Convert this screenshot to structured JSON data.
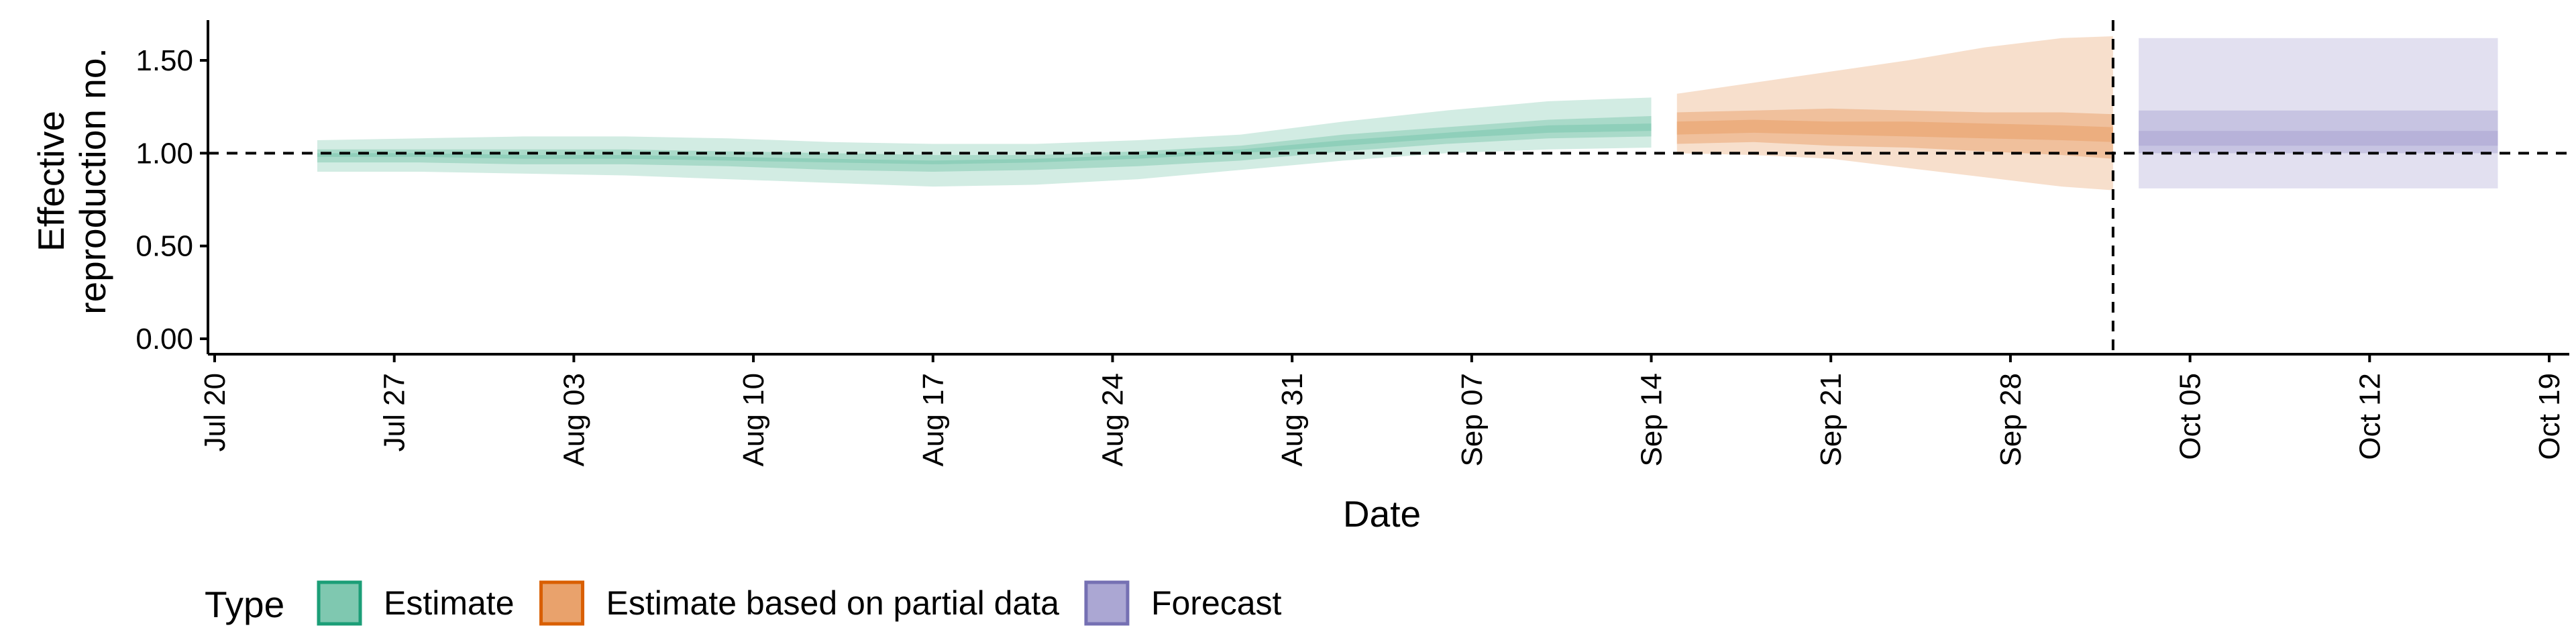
{
  "chart_data": {
    "type": "area",
    "xlabel": "Date",
    "ylabel": [
      "Effective",
      "reproduction no."
    ],
    "ylim": [
      0,
      1.7
    ],
    "y_ticks": [
      "0.00",
      "0.50",
      "1.00",
      "1.50"
    ],
    "y_tick_values": [
      0,
      0.5,
      1.0,
      1.5
    ],
    "x_domain": [
      "2020-07-20",
      "2020-10-20"
    ],
    "x_ticks": [
      {
        "date": "2020-07-20",
        "label": "Jul 20"
      },
      {
        "date": "2020-07-27",
        "label": "Jul 27"
      },
      {
        "date": "2020-08-03",
        "label": "Aug 03"
      },
      {
        "date": "2020-08-10",
        "label": "Aug 10"
      },
      {
        "date": "2020-08-17",
        "label": "Aug 17"
      },
      {
        "date": "2020-08-24",
        "label": "Aug 24"
      },
      {
        "date": "2020-08-31",
        "label": "Aug 31"
      },
      {
        "date": "2020-09-07",
        "label": "Sep 07"
      },
      {
        "date": "2020-09-14",
        "label": "Sep 14"
      },
      {
        "date": "2020-09-21",
        "label": "Sep 21"
      },
      {
        "date": "2020-09-28",
        "label": "Sep 28"
      },
      {
        "date": "2020-10-05",
        "label": "Oct 05"
      },
      {
        "date": "2020-10-12",
        "label": "Oct 12"
      },
      {
        "date": "2020-10-19",
        "label": "Oct 19"
      }
    ],
    "reference_hline": 1.0,
    "reference_vline": "2020-10-02",
    "grid": false,
    "legend": {
      "title": "Type",
      "position": "bottom-left"
    },
    "series": [
      {
        "name": "Estimate",
        "color": "#1B9E77",
        "fill": "#7FC8B0",
        "dates": [
          "2020-07-24",
          "2020-07-28",
          "2020-08-01",
          "2020-08-05",
          "2020-08-09",
          "2020-08-13",
          "2020-08-17",
          "2020-08-21",
          "2020-08-25",
          "2020-08-29",
          "2020-09-02",
          "2020-09-06",
          "2020-09-10",
          "2020-09-14"
        ],
        "lower90": [
          0.9,
          0.9,
          0.89,
          0.88,
          0.86,
          0.84,
          0.82,
          0.83,
          0.86,
          0.91,
          0.96,
          1.0,
          1.02,
          1.03
        ],
        "upper90": [
          1.07,
          1.08,
          1.09,
          1.09,
          1.08,
          1.06,
          1.05,
          1.05,
          1.07,
          1.1,
          1.17,
          1.23,
          1.28,
          1.3
        ],
        "lower50": [
          0.95,
          0.95,
          0.94,
          0.94,
          0.93,
          0.91,
          0.9,
          0.91,
          0.93,
          0.96,
          1.01,
          1.05,
          1.08,
          1.09
        ],
        "upper50": [
          1.02,
          1.02,
          1.02,
          1.02,
          1.01,
          1.0,
          0.99,
          0.99,
          1.01,
          1.04,
          1.1,
          1.14,
          1.18,
          1.2
        ],
        "lower20": [
          0.98,
          0.98,
          0.97,
          0.97,
          0.96,
          0.95,
          0.94,
          0.95,
          0.97,
          1.0,
          1.04,
          1.08,
          1.11,
          1.12
        ],
        "upper20": [
          1.0,
          1.0,
          0.99,
          0.99,
          0.98,
          0.97,
          0.96,
          0.97,
          0.99,
          1.02,
          1.07,
          1.11,
          1.15,
          1.16
        ]
      },
      {
        "name": "Estimate based on partial data",
        "color": "#D95F02",
        "fill": "#E9A26C",
        "dates": [
          "2020-09-15",
          "2020-09-18",
          "2020-09-21",
          "2020-09-24",
          "2020-09-27",
          "2020-09-30",
          "2020-10-02"
        ],
        "lower90": [
          1.0,
          0.99,
          0.97,
          0.92,
          0.87,
          0.82,
          0.8
        ],
        "upper90": [
          1.32,
          1.38,
          1.44,
          1.5,
          1.57,
          1.62,
          1.63
        ],
        "lower50": [
          1.05,
          1.06,
          1.04,
          1.03,
          1.01,
          0.99,
          0.97
        ],
        "upper50": [
          1.22,
          1.23,
          1.24,
          1.23,
          1.22,
          1.22,
          1.21
        ],
        "lower20": [
          1.1,
          1.11,
          1.1,
          1.09,
          1.08,
          1.07,
          1.06
        ],
        "upper20": [
          1.17,
          1.18,
          1.17,
          1.17,
          1.16,
          1.15,
          1.14
        ]
      },
      {
        "name": "Forecast",
        "color": "#7570B3",
        "fill": "#ABA7D3",
        "dates": [
          "2020-10-03",
          "2020-10-17"
        ],
        "lower90": [
          0.81,
          0.81
        ],
        "upper90": [
          1.62,
          1.62
        ],
        "lower50": [
          1.0,
          1.0
        ],
        "upper50": [
          1.23,
          1.23
        ],
        "lower20": [
          1.04,
          1.04
        ],
        "upper20": [
          1.12,
          1.12
        ]
      }
    ]
  }
}
